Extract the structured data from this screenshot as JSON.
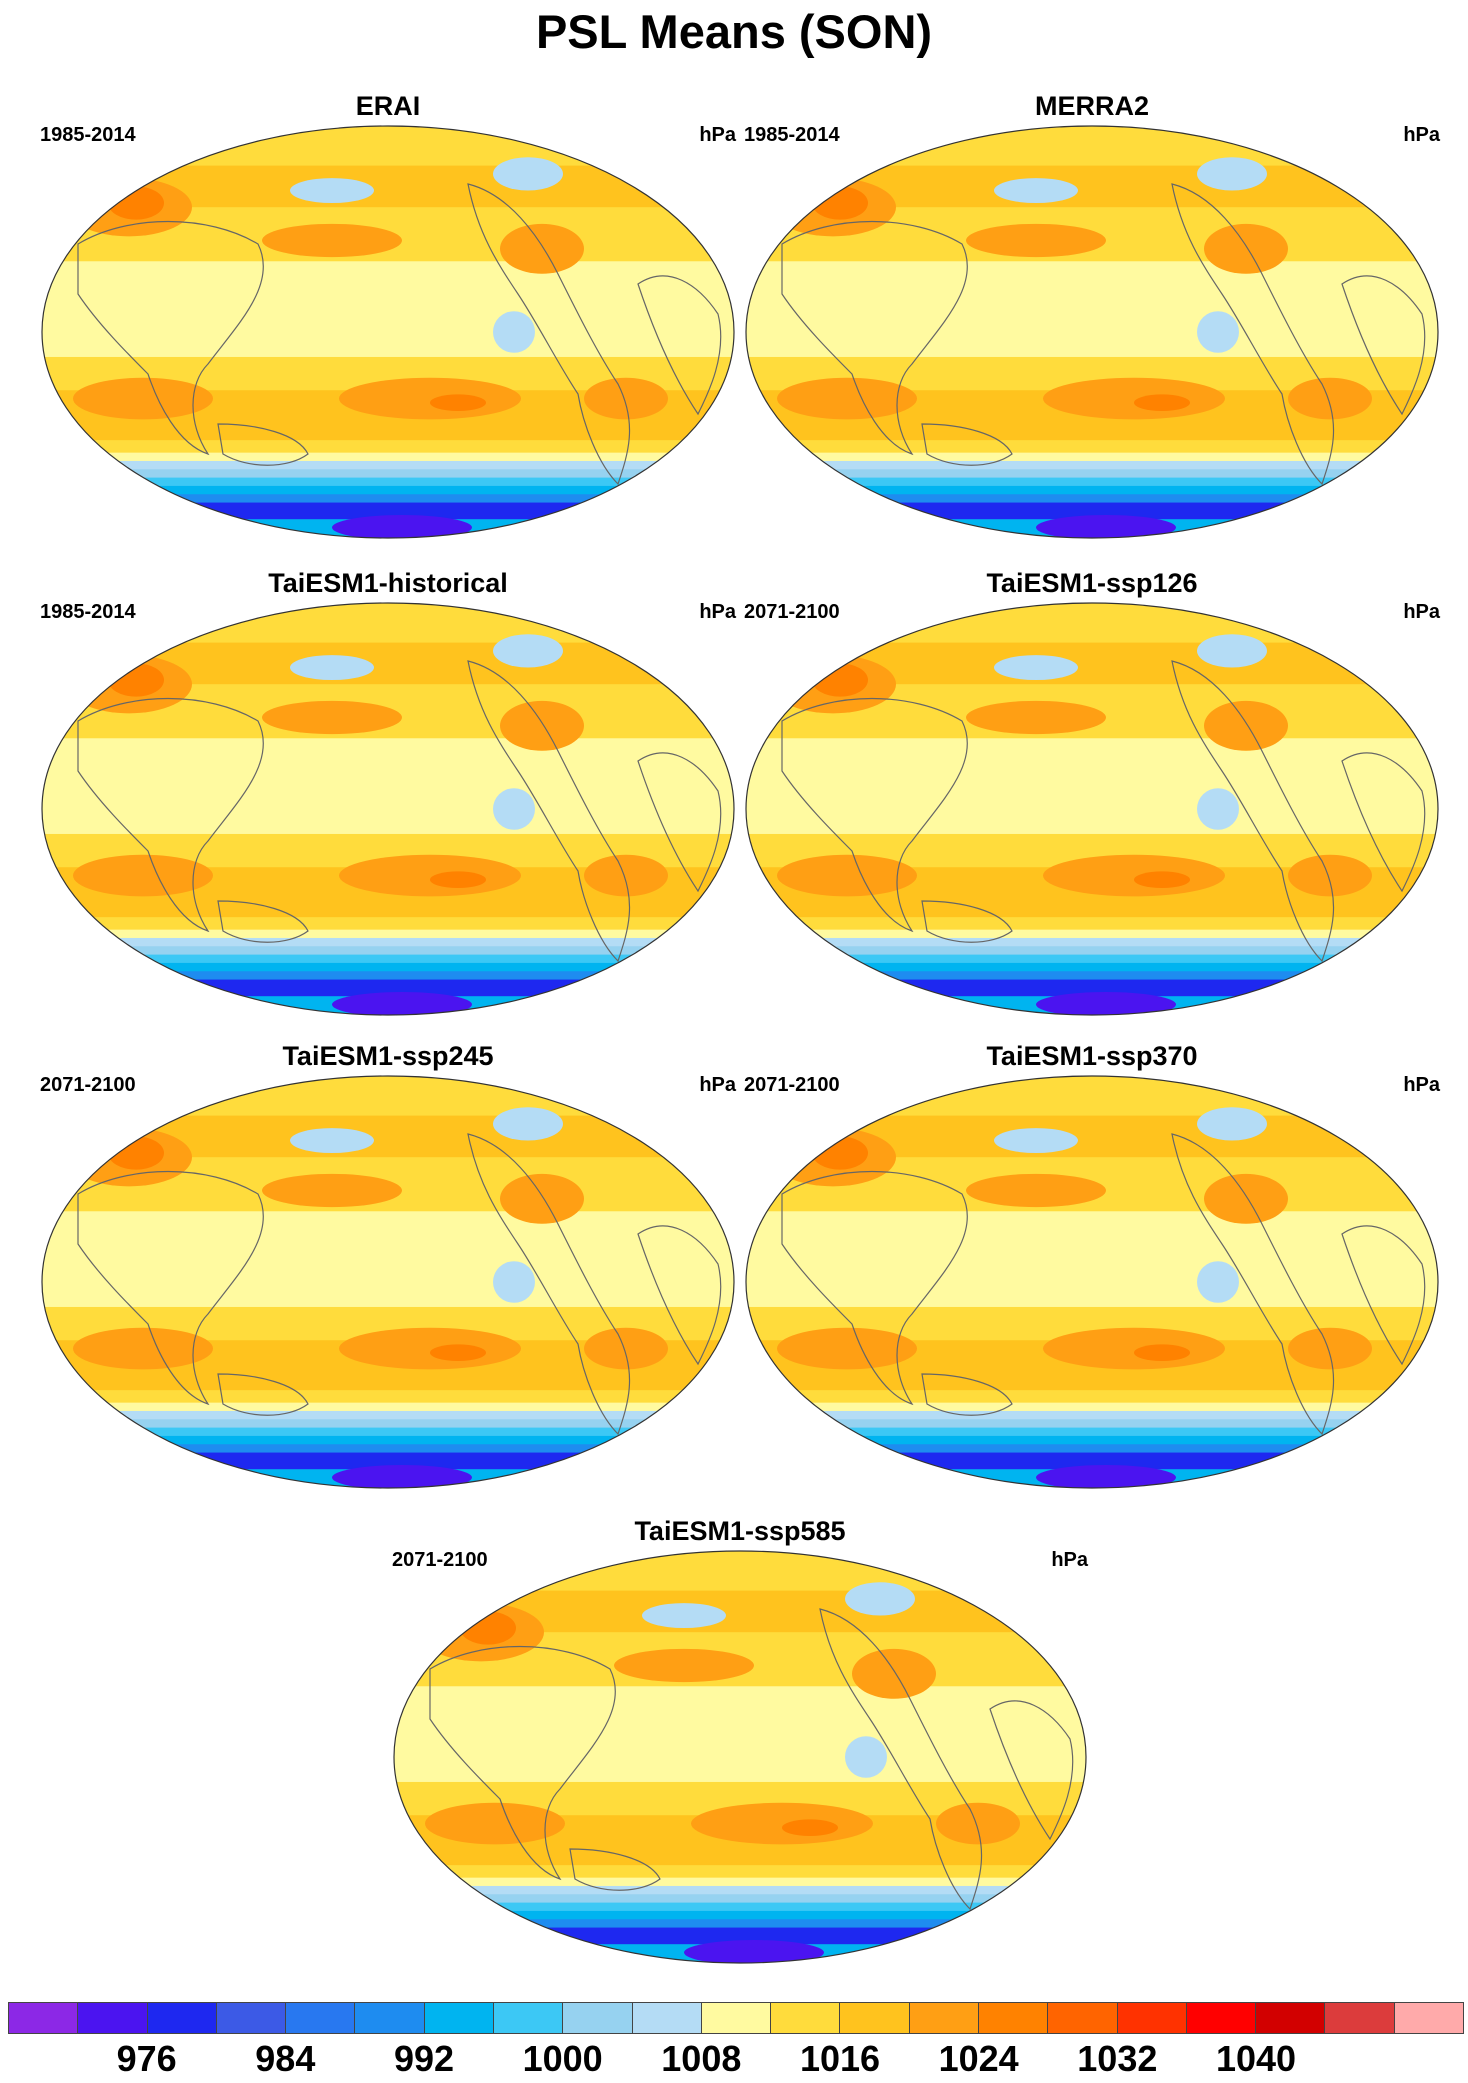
{
  "title": "PSL Means (SON)",
  "units": "hPa",
  "panels": [
    {
      "title": "ERAI",
      "period": "1985-2014"
    },
    {
      "title": "MERRA2",
      "period": "1985-2014"
    },
    {
      "title": "TaiESM1-historical",
      "period": "1985-2014"
    },
    {
      "title": "TaiESM1-ssp126",
      "period": "2071-2100"
    },
    {
      "title": "TaiESM1-ssp245",
      "period": "2071-2100"
    },
    {
      "title": "TaiESM1-ssp370",
      "period": "2071-2100"
    },
    {
      "title": "TaiESM1-ssp585",
      "period": "2071-2100"
    }
  ],
  "colorbar": {
    "colors": [
      "#8c28e6",
      "#4b14f0",
      "#1e28f0",
      "#3c5ae6",
      "#2878f0",
      "#1e8cf0",
      "#00b4f0",
      "#3cc8f5",
      "#96d2f0",
      "#b4dcf5",
      "#fffaa0",
      "#ffdc3c",
      "#ffc31e",
      "#ff9f14",
      "#ff8200",
      "#ff6400",
      "#ff3200",
      "#ff0000",
      "#d20000",
      "#dc3c3c",
      "#ffaaaa"
    ],
    "labels": [
      "976",
      "984",
      "992",
      "1000",
      "1008",
      "1016",
      "1024",
      "1032",
      "1040"
    ],
    "label_box_index": [
      2,
      4,
      6,
      8,
      10,
      12,
      14,
      16,
      18
    ]
  },
  "chart_data": {
    "type": "heatmap",
    "title": "PSL Means (SON)",
    "variable": "PSL",
    "units": "hPa",
    "levels": [
      972,
      976,
      980,
      984,
      988,
      992,
      996,
      1000,
      1004,
      1008,
      1012,
      1016,
      1020,
      1024,
      1028,
      1032,
      1036,
      1040,
      1044,
      1048
    ],
    "panels": [
      "ERAI",
      "MERRA2",
      "TaiESM1-historical",
      "TaiESM1-ssp126",
      "TaiESM1-ssp245",
      "TaiESM1-ssp370",
      "TaiESM1-ssp585"
    ]
  }
}
